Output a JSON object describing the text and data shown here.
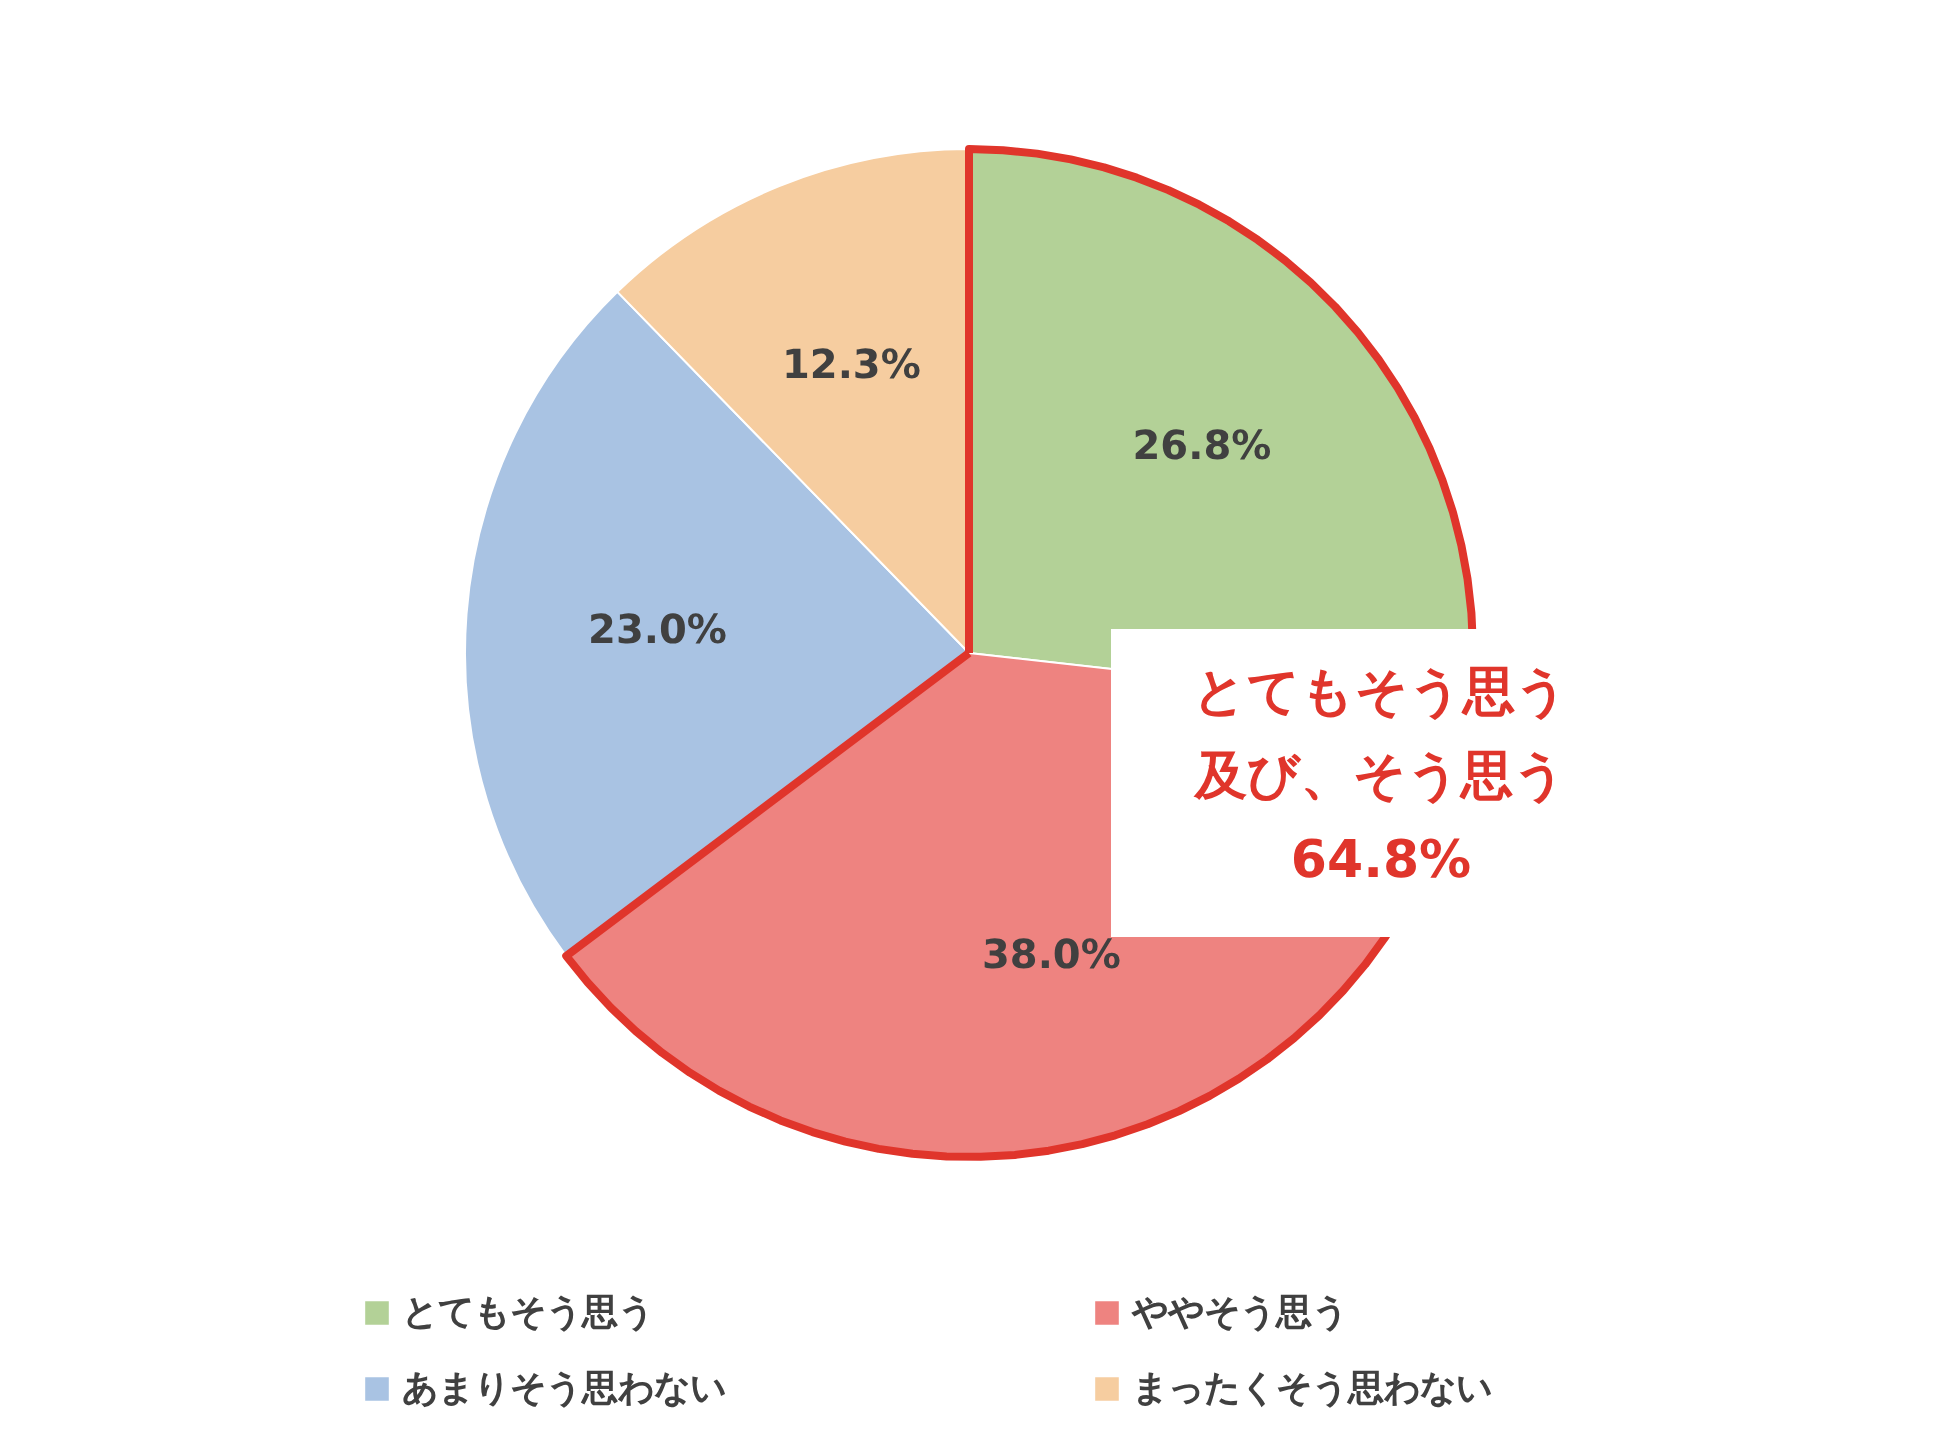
{
  "chart_data": {
    "type": "pie",
    "categories": [
      "とてもそう思う",
      "ややそう思う",
      "あまりそう思わない",
      "まったくそう思わない"
    ],
    "values": [
      26.8,
      38.0,
      23.0,
      12.3
    ],
    "colors": [
      "#b3d197",
      "#ee8380",
      "#a9c3e3",
      "#f6cda0"
    ],
    "value_labels": [
      "26.8%",
      "38.0%",
      "23.0%",
      "12.3%"
    ],
    "annotations": [
      "とてもそう思う",
      "及び、そう思う",
      "64.8%"
    ],
    "legend": "bottom"
  }
}
